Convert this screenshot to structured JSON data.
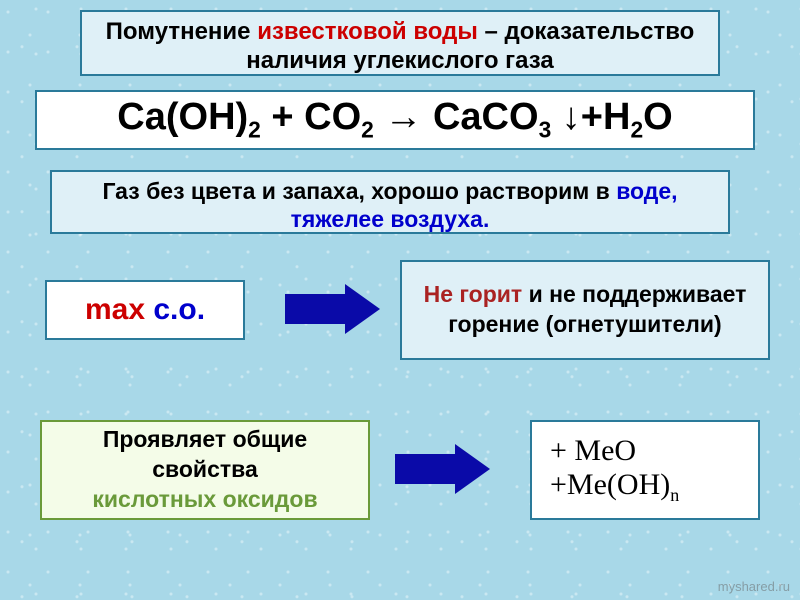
{
  "title": {
    "pre": "Помутнение ",
    "highlight": "известковой воды",
    "post": " – доказательство наличия углекислого газа"
  },
  "formula": {
    "parts": [
      "Ca(OH)",
      "2",
      " + CO",
      "2",
      " → CaCO",
      "3",
      " ↓+H",
      "2",
      "O"
    ]
  },
  "desc": {
    "pre": "Газ без цвета и запаха, хорошо растворим в ",
    "highlight": "воде, тяжелее воздуха."
  },
  "max": {
    "red": "max",
    "blue": " с.о."
  },
  "burn": {
    "highlight": "Не горит",
    "rest": " и не поддерживает горение (огнетушители)"
  },
  "acid": {
    "line1": "Проявляет общие свойства ",
    "line2": "кислотных оксидов"
  },
  "meo": {
    "line1": "+ MeO",
    "line2_a": "+Me(OH)",
    "line2_sub": "n"
  },
  "watermark": "myshared.ru",
  "colors": {
    "background": "#a8d8e8",
    "box_blue_bg": "#dff0f7",
    "box_white_bg": "#ffffff",
    "box_green_bg": "#f4fce8",
    "border_blue": "#2a7a9a",
    "border_green": "#6a9a3a",
    "red": "#cc0000",
    "blue": "#0000cc",
    "darkred": "#aa2222",
    "arrow": "#0a0aa8"
  }
}
